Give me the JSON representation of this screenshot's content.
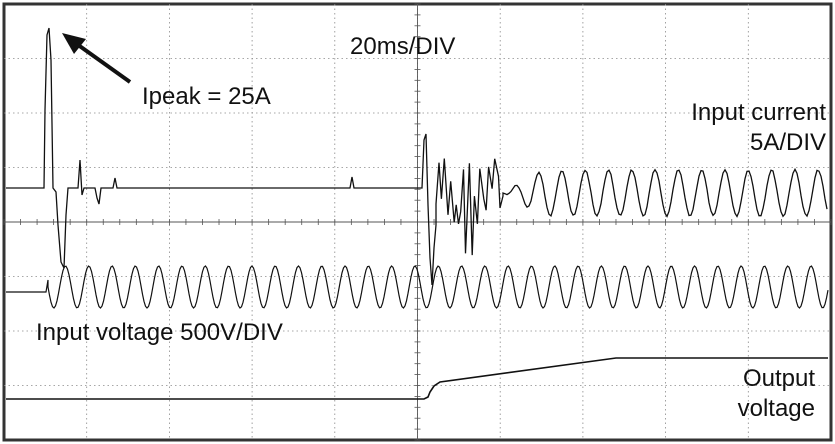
{
  "chart_data": {
    "type": "line",
    "timebase": "20ms/DIV",
    "annotations": {
      "peak": "Ipeak = 25A",
      "input_current_line1": "Input current",
      "input_current_line2": "5A/DIV",
      "input_voltage": "Input voltage 500V/DIV",
      "output_line1": "Output",
      "output_line2": "voltage"
    },
    "grid": true,
    "x_divisions": 10,
    "y_divisions": 8,
    "colors": {
      "trace": "#111111",
      "grid": "#8a8a8a",
      "frame": "#333333",
      "background": "#ffffff"
    }
  }
}
